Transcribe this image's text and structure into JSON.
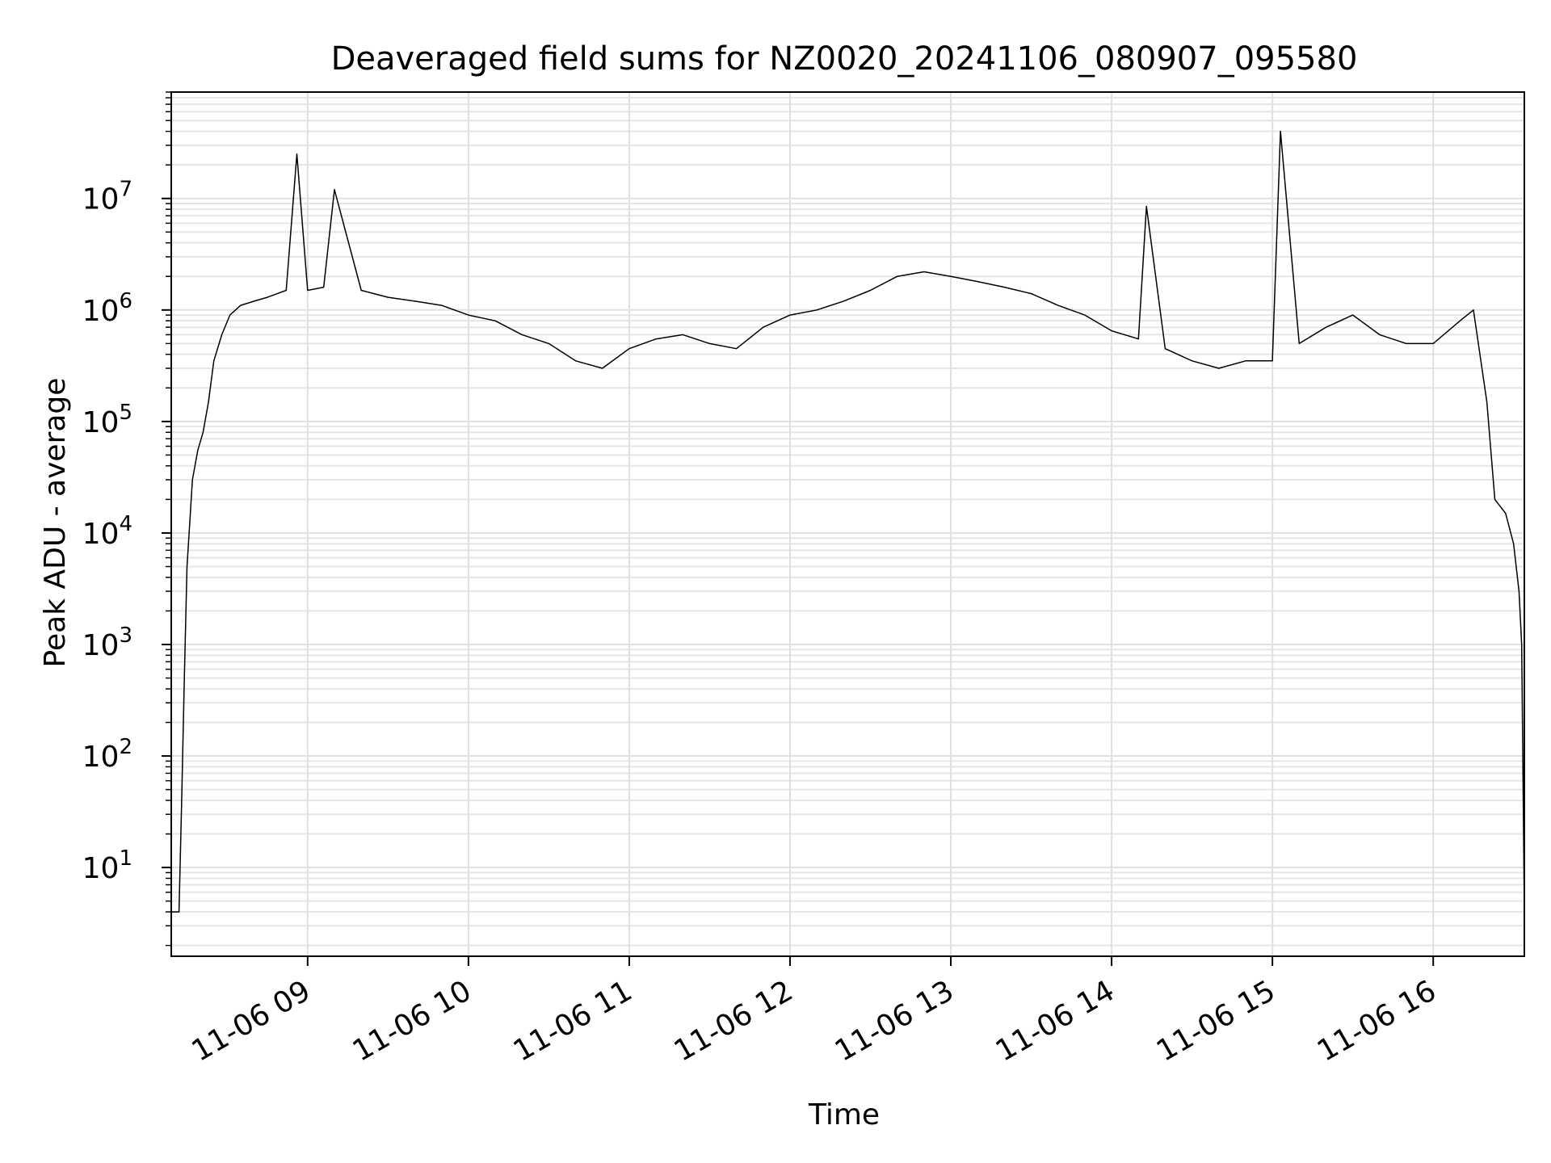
{
  "chart_data": {
    "type": "line",
    "title": "Deaveraged field sums for NZ0020_20241106_080907_095580",
    "xlabel": "Time",
    "ylabel": "Peak ADU - average",
    "yscale": "log",
    "ylim": [
      1.6,
      90000000
    ],
    "xlim": [
      "2024-11-06 08:09:07",
      "2024-11-06 16:34:00"
    ],
    "grid": true,
    "grid_minor": true,
    "line_color": "#000000",
    "x_ticks": [
      {
        "value": "2024-11-06 09:00",
        "label": "11-06 09"
      },
      {
        "value": "2024-11-06 10:00",
        "label": "11-06 10"
      },
      {
        "value": "2024-11-06 11:00",
        "label": "11-06 11"
      },
      {
        "value": "2024-11-06 12:00",
        "label": "11-06 12"
      },
      {
        "value": "2024-11-06 13:00",
        "label": "11-06 13"
      },
      {
        "value": "2024-11-06 14:00",
        "label": "11-06 14"
      },
      {
        "value": "2024-11-06 15:00",
        "label": "11-06 15"
      },
      {
        "value": "2024-11-06 16:00",
        "label": "11-06 16"
      }
    ],
    "y_ticks": [
      {
        "value": 10,
        "base": "10",
        "exp": "1"
      },
      {
        "value": 100,
        "base": "10",
        "exp": "2"
      },
      {
        "value": 1000,
        "base": "10",
        "exp": "3"
      },
      {
        "value": 10000,
        "base": "10",
        "exp": "4"
      },
      {
        "value": 100000,
        "base": "10",
        "exp": "5"
      },
      {
        "value": 1000000,
        "base": "10",
        "exp": "6"
      },
      {
        "value": 10000000,
        "base": "10",
        "exp": "7"
      }
    ],
    "series": [
      {
        "x": [
          "2024-11-06 08:09:07",
          "2024-11-06 08:11",
          "2024-11-06 08:12",
          "2024-11-06 08:13",
          "2024-11-06 08:14",
          "2024-11-06 08:15",
          "2024-11-06 08:16",
          "2024-11-06 08:17",
          "2024-11-06 08:19",
          "2024-11-06 08:21",
          "2024-11-06 08:23",
          "2024-11-06 08:25",
          "2024-11-06 08:28",
          "2024-11-06 08:31",
          "2024-11-06 08:35",
          "2024-11-06 08:40",
          "2024-11-06 08:45",
          "2024-11-06 08:52",
          "2024-11-06 08:56",
          "2024-11-06 09:00",
          "2024-11-06 09:06",
          "2024-11-06 09:10",
          "2024-11-06 09:20",
          "2024-11-06 09:30",
          "2024-11-06 09:40",
          "2024-11-06 09:50",
          "2024-11-06 10:00",
          "2024-11-06 10:10",
          "2024-11-06 10:20",
          "2024-11-06 10:30",
          "2024-11-06 10:40",
          "2024-11-06 10:50",
          "2024-11-06 11:00",
          "2024-11-06 11:10",
          "2024-11-06 11:20",
          "2024-11-06 11:30",
          "2024-11-06 11:40",
          "2024-11-06 11:50",
          "2024-11-06 12:00",
          "2024-11-06 12:10",
          "2024-11-06 12:20",
          "2024-11-06 12:30",
          "2024-11-06 12:40",
          "2024-11-06 12:50",
          "2024-11-06 13:00",
          "2024-11-06 13:10",
          "2024-11-06 13:20",
          "2024-11-06 13:30",
          "2024-11-06 13:40",
          "2024-11-06 13:50",
          "2024-11-06 14:00",
          "2024-11-06 14:10",
          "2024-11-06 14:13",
          "2024-11-06 14:20",
          "2024-11-06 14:30",
          "2024-11-06 14:40",
          "2024-11-06 14:50",
          "2024-11-06 15:00",
          "2024-11-06 15:03",
          "2024-11-06 15:10",
          "2024-11-06 15:20",
          "2024-11-06 15:30",
          "2024-11-06 15:40",
          "2024-11-06 15:50",
          "2024-11-06 16:00",
          "2024-11-06 16:10",
          "2024-11-06 16:15",
          "2024-11-06 16:20",
          "2024-11-06 16:23",
          "2024-11-06 16:27",
          "2024-11-06 16:30",
          "2024-11-06 16:32",
          "2024-11-06 16:33",
          "2024-11-06 16:34"
        ],
        "y": [
          4,
          4,
          4,
          40,
          500,
          5000,
          12000,
          30000,
          55000,
          80000,
          150000,
          350000,
          600000,
          900000,
          1100000,
          1200000,
          1300000,
          1500000,
          25000000,
          1500000,
          1600000,
          12000000,
          1500000,
          1300000,
          1200000,
          1100000,
          900000,
          800000,
          600000,
          500000,
          350000,
          300000,
          450000,
          550000,
          600000,
          500000,
          450000,
          700000,
          900000,
          1000000,
          1200000,
          1500000,
          2000000,
          2200000,
          2000000,
          1800000,
          1600000,
          1400000,
          1100000,
          900000,
          650000,
          550000,
          8500000,
          450000,
          350000,
          300000,
          350000,
          350000,
          40000000,
          500000,
          700000,
          900000,
          600000,
          500000,
          500000,
          800000,
          1000000,
          150000,
          20000,
          15000,
          8000,
          3000,
          1000,
          4
        ]
      }
    ]
  }
}
